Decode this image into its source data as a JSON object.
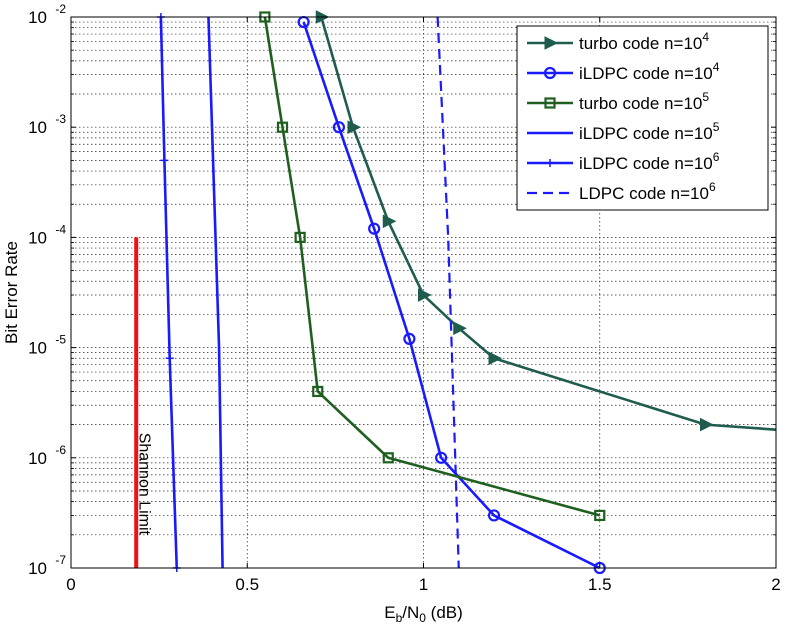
{
  "chart_data": {
    "type": "line",
    "title": "",
    "xlabel": {
      "main": "E",
      "sub1": "b",
      "mid": "/N",
      "sub2": "0",
      "tail": " (dB)"
    },
    "ylabel": "Bit Error Rate",
    "xlim": [
      0,
      2
    ],
    "ylim": [
      1e-07,
      0.01
    ],
    "yscale": "log",
    "grid": true,
    "x_ticks": [
      "0",
      "0.5",
      "1",
      "1.5",
      "2"
    ],
    "y_ticks": [
      {
        "base": "10",
        "exp": "-7",
        "value": 1e-07
      },
      {
        "base": "10",
        "exp": "-6",
        "value": 1e-06
      },
      {
        "base": "10",
        "exp": "-5",
        "value": 1e-05
      },
      {
        "base": "10",
        "exp": "-4",
        "value": 0.0001
      },
      {
        "base": "10",
        "exp": "-3",
        "value": 0.001
      },
      {
        "base": "10",
        "exp": "-2",
        "value": 0.01
      }
    ],
    "legend_position": "top-right",
    "series": [
      {
        "name": "turbo code n=10^4",
        "label_base": "turbo code n=10",
        "label_exp": "4",
        "color": "#1f5c4f",
        "marker": "triangle-right",
        "dash": "",
        "x": [
          0.71,
          0.8,
          0.9,
          1.0,
          1.1,
          1.2,
          1.8,
          2.0
        ],
        "y": [
          0.01,
          0.001,
          0.00014,
          3e-05,
          1.5e-05,
          8e-06,
          2e-06,
          1.8e-06
        ],
        "marker_count": 7
      },
      {
        "name": "iLDPC code n=10^4",
        "label_base": "iLDPC code n=10",
        "label_exp": "4",
        "color": "#1a1aff",
        "marker": "circle",
        "dash": "",
        "x": [
          0.66,
          0.76,
          0.86,
          0.96,
          1.05,
          1.2,
          1.5
        ],
        "y": [
          0.009,
          0.001,
          0.00012,
          1.2e-05,
          1e-06,
          3e-07,
          1e-07
        ]
      },
      {
        "name": "turbo code n=10^5",
        "label_base": "turbo code n=10",
        "label_exp": "5",
        "color": "#1f5f1f",
        "marker": "square",
        "dash": "",
        "x": [
          0.55,
          0.6,
          0.65,
          0.7,
          0.9,
          1.5
        ],
        "y": [
          0.01,
          0.001,
          0.0001,
          4e-06,
          1e-06,
          3e-07
        ]
      },
      {
        "name": "iLDPC code n=10^5",
        "label_base": "iLDPC code n=10",
        "label_exp": "5",
        "color": "#1a1aff",
        "marker": "none",
        "dash": "",
        "x": [
          0.39,
          0.4,
          0.41,
          0.42,
          0.43
        ],
        "y": [
          0.01,
          0.001,
          0.0001,
          1e-05,
          1e-07
        ]
      },
      {
        "name": "iLDPC code n=10^6",
        "label_base": "iLDPC code n=10",
        "label_exp": "6",
        "color": "#1a1aff",
        "marker": "plus",
        "dash": "",
        "x": [
          0.255,
          0.265,
          0.28,
          0.3
        ],
        "y": [
          0.01,
          0.0005,
          8e-06,
          1e-07
        ]
      },
      {
        "name": "LDPC code n=10^6",
        "label_base": "LDPC code n=10",
        "label_exp": "6",
        "color": "#1a1aff",
        "marker": "none",
        "dash": "10,6",
        "x": [
          1.04,
          1.07,
          1.1
        ],
        "y": [
          0.01,
          0.0001,
          1e-07
        ]
      }
    ],
    "annotations": [
      {
        "text": "Shannon Limit",
        "x": 0.185,
        "y_from": 1e-07,
        "y_to": 0.0001,
        "color": "#ee1111"
      }
    ]
  }
}
